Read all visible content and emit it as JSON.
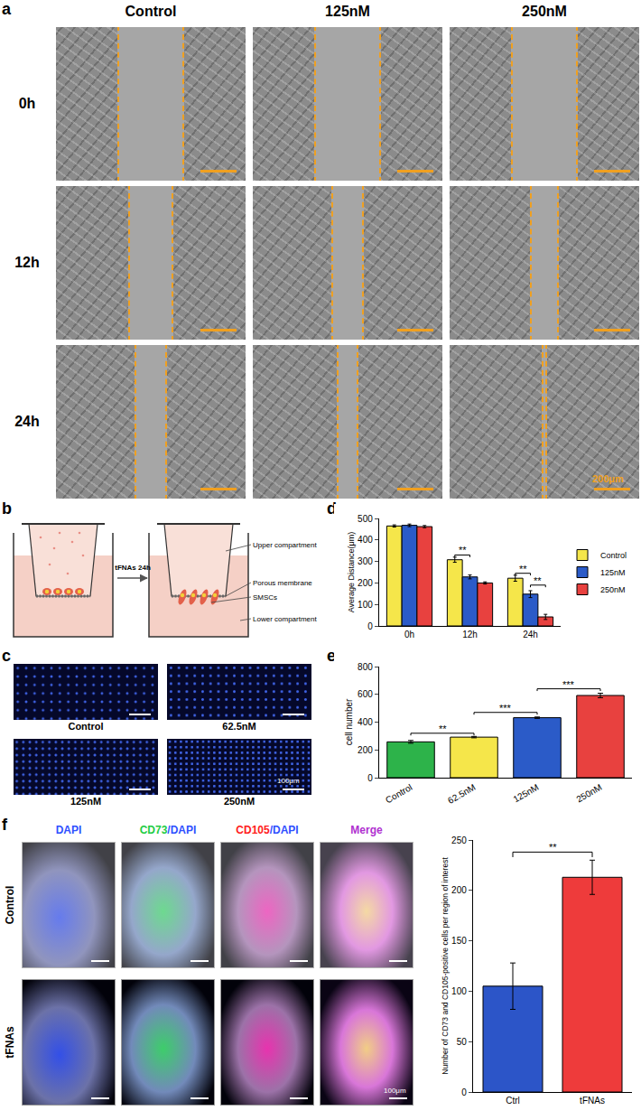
{
  "panels": {
    "a": {
      "label": "a",
      "columns": [
        "Control",
        "125nM",
        "250nM"
      ],
      "rows": [
        "0h",
        "12h",
        "24h"
      ],
      "scale_bar": "200μm"
    },
    "b": {
      "label": "b",
      "arrow_label": "tFNAs 24h",
      "parts": [
        "Upper compartment",
        "Porous membrane",
        "SMSCs",
        "Lower compartment"
      ]
    },
    "c": {
      "label": "c",
      "images": [
        "Control",
        "62.5nM",
        "125nM",
        "250nM"
      ],
      "scale_bar": "100μm"
    },
    "d": {
      "label": "d"
    },
    "e": {
      "label": "e"
    },
    "f": {
      "label": "f",
      "columns": [
        "DAPI",
        "CD73/DAPI",
        "CD105/DAPI",
        "Merge"
      ],
      "rows": [
        "Control",
        "tFNAs"
      ],
      "scale_bar": "100μm"
    }
  },
  "chart_data": [
    {
      "type": "bar",
      "categories": [
        "0h",
        "12h",
        "24h"
      ],
      "series": [
        {
          "name": "Control",
          "color": "#f5e64a",
          "values": [
            465,
            308,
            222
          ],
          "errors": [
            5,
            12,
            14
          ]
        },
        {
          "name": "125nM",
          "color": "#2b5bc8",
          "values": [
            468,
            228,
            148
          ],
          "errors": [
            6,
            9,
            16
          ]
        },
        {
          "name": "250nM",
          "color": "#e8413f",
          "values": [
            462,
            200,
            42
          ],
          "errors": [
            5,
            5,
            12
          ]
        }
      ],
      "ylabel": "Average Distance(μm)",
      "ylim": [
        0,
        500
      ],
      "yticks": [
        0,
        100,
        200,
        300,
        400,
        500
      ],
      "grid": false,
      "legend": "right",
      "annotations": [
        {
          "text": "**",
          "category": "12h",
          "from": "Control",
          "to": "125nM",
          "y": 330
        },
        {
          "text": "**",
          "category": "24h",
          "from": "Control",
          "to": "125nM",
          "y": 245
        },
        {
          "text": "**",
          "category": "24h",
          "from": "125nM",
          "to": "250nM",
          "y": 190
        }
      ]
    },
    {
      "type": "bar",
      "categories": [
        "Control",
        "62.5nM",
        "125nM",
        "250nM"
      ],
      "values": [
        258,
        292,
        432,
        592
      ],
      "errors": [
        10,
        5,
        5,
        16
      ],
      "colors": [
        "#2db34a",
        "#f5e64a",
        "#2b5bc8",
        "#e8413f"
      ],
      "ylabel": "cell number",
      "ylim": [
        0,
        800
      ],
      "yticks": [
        0,
        200,
        400,
        600,
        800
      ],
      "grid": false,
      "annotations": [
        {
          "text": "**",
          "from": "Control",
          "to": "62.5nM",
          "y": 320
        },
        {
          "text": "***",
          "from": "62.5nM",
          "to": "125nM",
          "y": 470
        },
        {
          "text": "***",
          "from": "125nM",
          "to": "250nM",
          "y": 640
        }
      ]
    },
    {
      "type": "bar",
      "categories": [
        "Ctrl",
        "tFNAs"
      ],
      "values": [
        105,
        213
      ],
      "errors": [
        23,
        17
      ],
      "colors": [
        "#2c55c8",
        "#ee3b3b"
      ],
      "ylabel": "Number of CD73 and CD105-positive cells per region of interest",
      "ylim": [
        0,
        250
      ],
      "yticks": [
        0,
        50,
        100,
        150,
        200,
        250
      ],
      "grid": false,
      "annotations": [
        {
          "text": "**",
          "from": "Ctrl",
          "to": "tFNAs",
          "y": 238
        }
      ]
    }
  ]
}
